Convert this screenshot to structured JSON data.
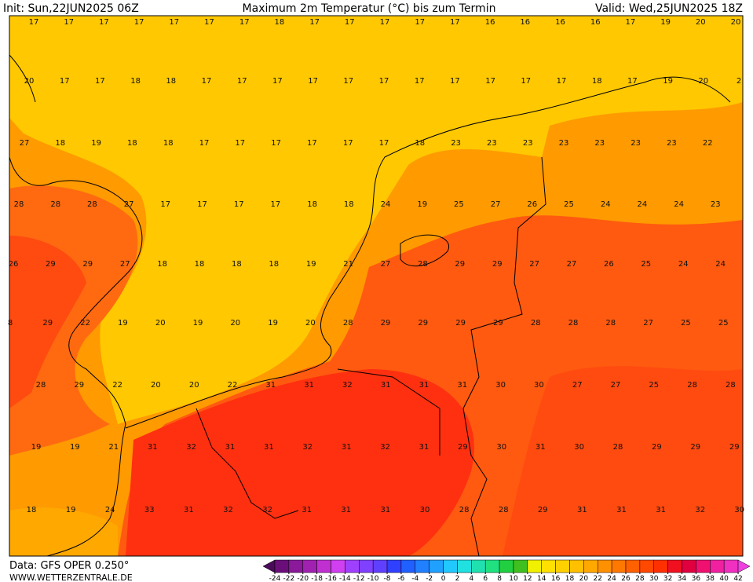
{
  "map": {
    "header": {
      "init": "Init: Sun,22JUN2025 06Z",
      "title": "Maximum 2m Temperatur (°C) bis zum Termin",
      "valid": "Valid: Wed,25JUN2025 18Z"
    },
    "values": [
      [
        17,
        17,
        17,
        17,
        17,
        17,
        17,
        18,
        17,
        17,
        17,
        17,
        17,
        16,
        16,
        16,
        16,
        17,
        19,
        20,
        20
      ],
      [
        20,
        17,
        17,
        18,
        18,
        17,
        17,
        17,
        17,
        17,
        17,
        17,
        17,
        17,
        17,
        17,
        18,
        17,
        19,
        20,
        2
      ],
      [
        27,
        18,
        19,
        18,
        18,
        17,
        17,
        17,
        17,
        17,
        17,
        18,
        23,
        23,
        23,
        23,
        23,
        23,
        23,
        22
      ],
      [
        28,
        28,
        28,
        27,
        17,
        17,
        17,
        17,
        18,
        18,
        24,
        19,
        25,
        27,
        26,
        25,
        24,
        24,
        24,
        23
      ],
      [
        26,
        29,
        29,
        27,
        18,
        18,
        18,
        18,
        19,
        21,
        27,
        28,
        29,
        29,
        27,
        27,
        26,
        25,
        24,
        24
      ],
      [
        8,
        29,
        22,
        19,
        20,
        19,
        20,
        19,
        20,
        28,
        29,
        29,
        29,
        29,
        28,
        28,
        28,
        27,
        25,
        25
      ],
      [
        28,
        29,
        22,
        20,
        20,
        22,
        31,
        31,
        32,
        31,
        31,
        31,
        30,
        30,
        27,
        27,
        25,
        28,
        28
      ],
      [
        19,
        19,
        21,
        31,
        32,
        31,
        31,
        32,
        31,
        32,
        31,
        29,
        30,
        31,
        30,
        28,
        29,
        29,
        29
      ],
      [
        18,
        19,
        24,
        33,
        31,
        32,
        32,
        31,
        31,
        31,
        30,
        28,
        28,
        29,
        31,
        31,
        31,
        32,
        30
      ]
    ],
    "footer": {
      "data": "Data: GFS OPER 0.250°",
      "site": "WWW.WETTERZENTRALE.DE"
    },
    "colorbar": {
      "ticks": [
        -24,
        -22,
        -20,
        -18,
        -16,
        -14,
        -12,
        -10,
        -8,
        -6,
        -4,
        -2,
        0,
        2,
        4,
        6,
        8,
        10,
        12,
        14,
        16,
        18,
        20,
        22,
        24,
        26,
        28,
        30,
        32,
        34,
        36,
        38,
        40,
        42
      ],
      "colors": [
        "#4b0a5a",
        "#6a0f7a",
        "#8a1a9a",
        "#a020b0",
        "#c030d0",
        "#d040f0",
        "#a040ff",
        "#8040ff",
        "#6040ff",
        "#3040ff",
        "#2060ff",
        "#2080ff",
        "#20a0ff",
        "#20c8ff",
        "#20e0e0",
        "#20e0b0",
        "#20e080",
        "#20d040",
        "#40c020",
        "#f0f000",
        "#ffe000",
        "#ffd000",
        "#ffc000",
        "#ffa800",
        "#ff9000",
        "#ff7800",
        "#ff6000",
        "#ff4800",
        "#ff3000",
        "#f01020",
        "#e00040",
        "#f01070",
        "#f020a0",
        "#f030c0",
        "#f040e0"
      ]
    }
  }
}
